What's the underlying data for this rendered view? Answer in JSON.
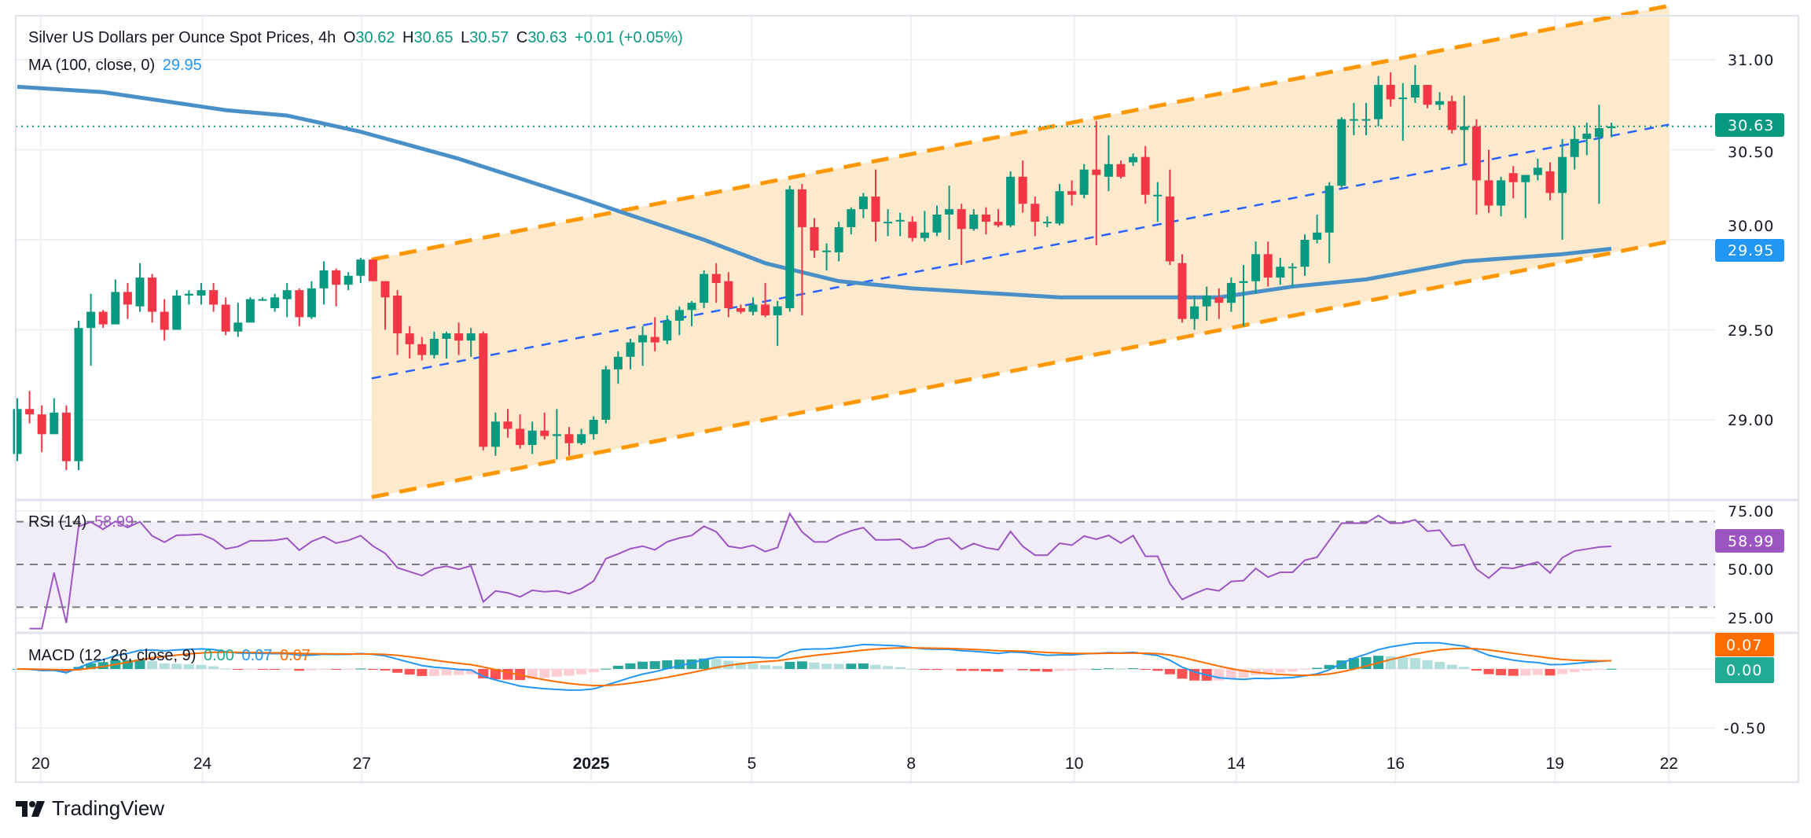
{
  "header": {
    "symbol_title": "Silver US Dollars per Ounce Spot Prices, 4h",
    "o_label": "O",
    "o_value": "30.62",
    "h_label": "H",
    "h_value": "30.65",
    "l_label": "L",
    "l_value": "30.57",
    "c_label": "C",
    "c_value": "30.63",
    "change": "+0.01 (+0.05%)",
    "ma_label": "MA (100, close, 0)",
    "ma_value": "29.95"
  },
  "rsi_legend": {
    "label": "RSI (14)",
    "value": "58.99"
  },
  "macd_legend": {
    "label": "MACD (12, 26, close, 9)",
    "hist": "0.00",
    "macd": "0.07",
    "signal": "0.07"
  },
  "price_axis": [
    "31.00",
    "30.50",
    "30.00",
    "29.50",
    "29.00"
  ],
  "rsi_axis": [
    "75.00",
    "50.00",
    "25.00"
  ],
  "macd_axis": [
    "-0.50"
  ],
  "badges": {
    "price": "30.63",
    "ma": "29.95",
    "rsi": "58.99",
    "signal": "0.07",
    "macd_hist": "0.00"
  },
  "branding": "TradingView",
  "colors": {
    "up": "#089981",
    "down": "#f23645",
    "ma": "#4a90c8",
    "channel": "#ff9800",
    "channel_fill": "#fde9cc",
    "mid": "#2962ff",
    "rsi": "#9c55c2",
    "macd": "#2196f3",
    "signal": "#ff6d00",
    "price_badge": "#089981",
    "ma_badge": "#2196f3"
  },
  "chart_data": {
    "type": "candlestick",
    "title": "Silver US Dollars per Ounce Spot Prices, 4h",
    "x_ticks": [
      {
        "label": "20",
        "index": 1.9,
        "bold": false
      },
      {
        "label": "24",
        "index": 15.1,
        "bold": false
      },
      {
        "label": "27",
        "index": 28.1,
        "bold": false
      },
      {
        "label": "2025",
        "index": 46.8,
        "bold": true
      },
      {
        "label": "5",
        "index": 59.9,
        "bold": false
      },
      {
        "label": "8",
        "index": 72.9,
        "bold": false
      },
      {
        "label": "10",
        "index": 86.2,
        "bold": false
      },
      {
        "label": "14",
        "index": 99.4,
        "bold": false
      },
      {
        "label": "16",
        "index": 112.4,
        "bold": false
      },
      {
        "label": "19",
        "index": 125.4,
        "bold": false
      },
      {
        "label": "22",
        "index": 134.7,
        "bold": false
      }
    ],
    "ylim": [
      28.55,
      31.3
    ],
    "rsi_ylim": [
      20,
      80
    ],
    "rsi_levels": [
      70,
      50,
      30
    ],
    "macd_ylim": [
      -0.6,
      0.2
    ],
    "last_price": 30.63,
    "candles_ohlc": [
      [
        28.81,
        29.12,
        28.77,
        29.06
      ],
      [
        29.06,
        29.16,
        28.98,
        29.03
      ],
      [
        29.03,
        29.08,
        28.82,
        28.92
      ],
      [
        28.92,
        29.12,
        28.92,
        29.04
      ],
      [
        29.04,
        29.08,
        28.72,
        28.77
      ],
      [
        28.77,
        29.55,
        28.72,
        29.51
      ],
      [
        29.51,
        29.7,
        29.3,
        29.6
      ],
      [
        29.6,
        29.61,
        29.51,
        29.53
      ],
      [
        29.53,
        29.78,
        29.53,
        29.71
      ],
      [
        29.71,
        29.76,
        29.56,
        29.64
      ],
      [
        29.63,
        29.87,
        29.6,
        29.79
      ],
      [
        29.79,
        29.81,
        29.54,
        29.6
      ],
      [
        29.6,
        29.67,
        29.44,
        29.5
      ],
      [
        29.5,
        29.72,
        29.5,
        29.69
      ],
      [
        29.69,
        29.72,
        29.64,
        29.7
      ],
      [
        29.69,
        29.76,
        29.64,
        29.72
      ],
      [
        29.72,
        29.76,
        29.6,
        29.64
      ],
      [
        29.64,
        29.68,
        29.47,
        29.49
      ],
      [
        29.49,
        29.65,
        29.46,
        29.54
      ],
      [
        29.54,
        29.68,
        29.54,
        29.67
      ],
      [
        29.67,
        29.68,
        29.66,
        29.67
      ],
      [
        29.62,
        29.7,
        29.6,
        29.68
      ],
      [
        29.67,
        29.76,
        29.57,
        29.72
      ],
      [
        29.72,
        29.73,
        29.52,
        29.57
      ],
      [
        29.57,
        29.77,
        29.56,
        29.73
      ],
      [
        29.73,
        29.88,
        29.64,
        29.83
      ],
      [
        29.83,
        29.84,
        29.63,
        29.75
      ],
      [
        29.75,
        29.82,
        29.72,
        29.8
      ],
      [
        29.8,
        29.9,
        29.76,
        29.89
      ],
      [
        29.89,
        29.89,
        29.77,
        29.77
      ],
      [
        29.77,
        29.77,
        29.5,
        29.68
      ],
      [
        29.69,
        29.72,
        29.36,
        29.48
      ],
      [
        29.48,
        29.52,
        29.34,
        29.42
      ],
      [
        29.42,
        29.46,
        29.33,
        29.36
      ],
      [
        29.36,
        29.49,
        29.34,
        29.45
      ],
      [
        29.45,
        29.49,
        29.34,
        29.48
      ],
      [
        29.48,
        29.54,
        29.36,
        29.44
      ],
      [
        29.44,
        29.51,
        29.35,
        29.48
      ],
      [
        29.48,
        29.49,
        28.83,
        28.85
      ],
      [
        28.85,
        29.04,
        28.8,
        28.99
      ],
      [
        28.99,
        29.06,
        28.9,
        28.95
      ],
      [
        28.95,
        29.03,
        28.84,
        28.86
      ],
      [
        28.86,
        28.99,
        28.81,
        28.94
      ],
      [
        28.94,
        29.04,
        28.89,
        28.91
      ],
      [
        28.91,
        29.06,
        28.78,
        28.92
      ],
      [
        28.92,
        28.96,
        28.8,
        28.87
      ],
      [
        28.87,
        28.95,
        28.86,
        28.92
      ],
      [
        28.92,
        29.02,
        28.89,
        29.0
      ],
      [
        29.0,
        29.3,
        28.98,
        29.28
      ],
      [
        29.28,
        29.38,
        29.2,
        29.35
      ],
      [
        29.35,
        29.45,
        29.28,
        29.43
      ],
      [
        29.43,
        29.52,
        29.3,
        29.47
      ],
      [
        29.46,
        29.57,
        29.38,
        29.43
      ],
      [
        29.44,
        29.58,
        29.42,
        29.55
      ],
      [
        29.55,
        29.63,
        29.47,
        29.61
      ],
      [
        29.61,
        29.66,
        29.52,
        29.65
      ],
      [
        29.65,
        29.83,
        29.62,
        29.81
      ],
      [
        29.81,
        29.87,
        29.65,
        29.76
      ],
      [
        29.77,
        29.82,
        29.57,
        29.62
      ],
      [
        29.62,
        29.64,
        29.59,
        29.6
      ],
      [
        29.6,
        29.68,
        29.58,
        29.64
      ],
      [
        29.64,
        29.76,
        29.57,
        29.58
      ],
      [
        29.58,
        29.66,
        29.41,
        29.63
      ],
      [
        29.62,
        30.3,
        29.6,
        30.28
      ],
      [
        30.28,
        30.31,
        29.58,
        30.07
      ],
      [
        30.07,
        30.12,
        29.9,
        29.94
      ],
      [
        29.94,
        29.98,
        29.83,
        29.94
      ],
      [
        29.93,
        30.1,
        29.88,
        30.07
      ],
      [
        30.07,
        30.18,
        30.03,
        30.17
      ],
      [
        30.17,
        30.26,
        30.12,
        30.24
      ],
      [
        30.24,
        30.39,
        29.99,
        30.1
      ],
      [
        30.1,
        30.17,
        30.02,
        30.1
      ],
      [
        30.11,
        30.15,
        30.02,
        30.11
      ],
      [
        30.1,
        30.13,
        29.99,
        30.01
      ],
      [
        30.01,
        30.16,
        29.99,
        30.04
      ],
      [
        30.04,
        30.19,
        30.02,
        30.14
      ],
      [
        30.14,
        30.3,
        30.0,
        30.17
      ],
      [
        30.17,
        30.2,
        29.86,
        30.06
      ],
      [
        30.06,
        30.17,
        30.05,
        30.14
      ],
      [
        30.14,
        30.18,
        30.03,
        30.1
      ],
      [
        30.1,
        30.17,
        30.07,
        30.08
      ],
      [
        30.08,
        30.38,
        30.07,
        30.35
      ],
      [
        30.35,
        30.44,
        30.15,
        30.2
      ],
      [
        30.2,
        30.24,
        30.02,
        30.1
      ],
      [
        30.1,
        30.13,
        30.07,
        30.1
      ],
      [
        30.09,
        30.31,
        30.08,
        30.27
      ],
      [
        30.27,
        30.33,
        30.19,
        30.25
      ],
      [
        30.25,
        30.42,
        30.23,
        30.39
      ],
      [
        30.39,
        30.66,
        29.97,
        30.36
      ],
      [
        30.35,
        30.58,
        30.27,
        30.42
      ],
      [
        30.42,
        30.44,
        30.34,
        30.35
      ],
      [
        30.43,
        30.48,
        30.41,
        30.46
      ],
      [
        30.46,
        30.52,
        30.2,
        30.25
      ],
      [
        30.25,
        30.32,
        30.1,
        30.25
      ],
      [
        30.24,
        30.39,
        29.86,
        29.88
      ],
      [
        29.87,
        29.92,
        29.54,
        29.56
      ],
      [
        29.56,
        29.69,
        29.5,
        29.63
      ],
      [
        29.63,
        29.74,
        29.55,
        29.69
      ],
      [
        29.68,
        29.73,
        29.56,
        29.65
      ],
      [
        29.65,
        29.79,
        29.6,
        29.76
      ],
      [
        29.76,
        29.86,
        29.52,
        29.77
      ],
      [
        29.77,
        29.99,
        29.7,
        29.92
      ],
      [
        29.92,
        29.99,
        29.74,
        29.79
      ],
      [
        29.79,
        29.9,
        29.75,
        29.85
      ],
      [
        29.85,
        29.87,
        29.74,
        29.85
      ],
      [
        29.85,
        30.03,
        29.8,
        30.0
      ],
      [
        30.0,
        30.14,
        29.98,
        30.04
      ],
      [
        30.04,
        30.32,
        29.87,
        30.3
      ],
      [
        30.3,
        30.68,
        30.29,
        30.67
      ],
      [
        30.67,
        30.76,
        30.58,
        30.67
      ],
      [
        30.67,
        30.76,
        30.58,
        30.67
      ],
      [
        30.67,
        30.91,
        30.63,
        30.86
      ],
      [
        30.86,
        30.93,
        30.74,
        30.78
      ],
      [
        30.79,
        30.87,
        30.55,
        30.79
      ],
      [
        30.79,
        30.97,
        30.76,
        30.86
      ],
      [
        30.86,
        30.86,
        30.73,
        30.75
      ],
      [
        30.75,
        30.82,
        30.72,
        30.77
      ],
      [
        30.77,
        30.8,
        30.59,
        30.61
      ],
      [
        30.61,
        30.8,
        30.42,
        30.63
      ],
      [
        30.63,
        30.67,
        30.14,
        30.33
      ],
      [
        30.33,
        30.5,
        30.15,
        30.19
      ],
      [
        30.19,
        30.35,
        30.13,
        30.33
      ],
      [
        30.37,
        30.41,
        30.23,
        30.32
      ],
      [
        30.32,
        30.36,
        30.12,
        30.36
      ],
      [
        30.36,
        30.45,
        30.33,
        30.4
      ],
      [
        30.38,
        30.43,
        30.22,
        30.26
      ],
      [
        30.26,
        30.56,
        30.0,
        30.46
      ],
      [
        30.46,
        30.63,
        30.39,
        30.56
      ],
      [
        30.56,
        30.65,
        30.47,
        30.59
      ],
      [
        30.57,
        30.75,
        30.2,
        30.62
      ],
      [
        30.62,
        30.65,
        30.57,
        30.63
      ]
    ],
    "ma100_points": [
      [
        0,
        30.85
      ],
      [
        7,
        30.82
      ],
      [
        17,
        30.72
      ],
      [
        22,
        30.69
      ],
      [
        28,
        30.6
      ],
      [
        36,
        30.45
      ],
      [
        46,
        30.23
      ],
      [
        49,
        30.16
      ],
      [
        56,
        30.0
      ],
      [
        61,
        29.87
      ],
      [
        67,
        29.77
      ],
      [
        73,
        29.73
      ],
      [
        85,
        29.68
      ],
      [
        98,
        29.68
      ],
      [
        104,
        29.74
      ],
      [
        110,
        29.78
      ],
      [
        118,
        29.88
      ],
      [
        126,
        29.92
      ],
      [
        130,
        29.95
      ]
    ],
    "channel": {
      "start": {
        "index": 28.9,
        "upper": 29.89,
        "mid": 29.23,
        "lower": 28.57
      },
      "end": {
        "index": 134.7,
        "upper": 31.3,
        "mid": 30.64,
        "lower": 29.99
      }
    }
  }
}
